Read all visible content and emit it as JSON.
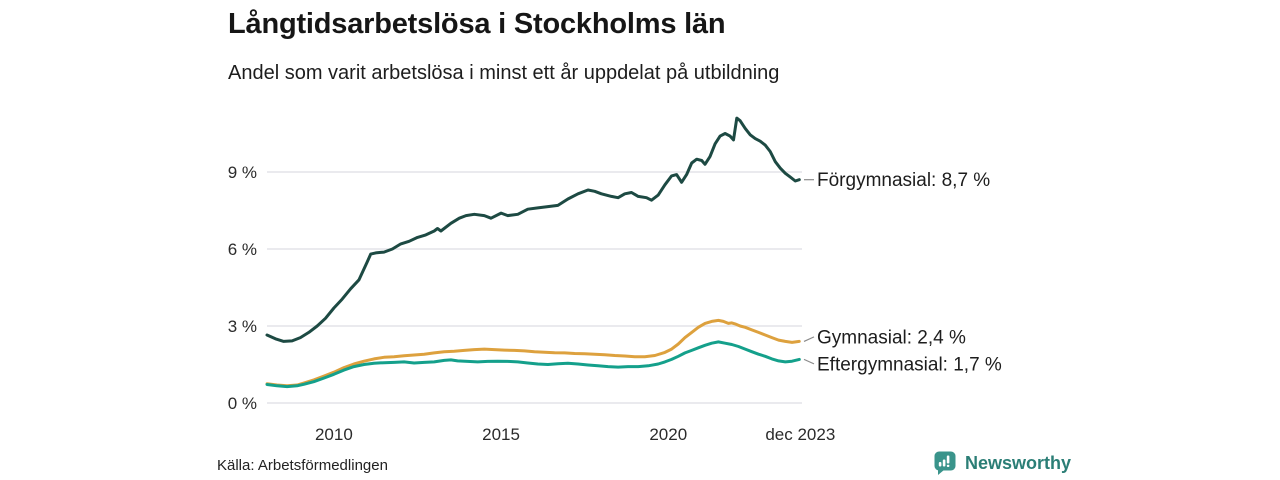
{
  "header": {
    "title": "Långtidsarbetslösa i Stockholms län",
    "subtitle": "Andel som varit arbetslösa i minst ett år uppdelat på utbildning"
  },
  "footer": {
    "source": "Källa: Arbetsförmedlingen",
    "brand": "Newsworthy"
  },
  "colors": {
    "forgymnasial": "#1d4a43",
    "gymnasial": "#dda13e",
    "eftergymnasial": "#14a08b",
    "gridline": "#e4e4e8",
    "axis_text": "#2b2b2b",
    "label_text": "#1d1d1d",
    "connector": "#8a8a8a",
    "brand_teal": "#3a948b",
    "background": "#ffffff"
  },
  "chart_data": {
    "type": "line",
    "title": "Långtidsarbetslösa i Stockholms län",
    "subtitle": "Andel som varit arbetslösa i minst ett år uppdelat på utbildning",
    "xlabel": "",
    "ylabel": "",
    "x_domain": [
      2008,
      2024
    ],
    "y_axis_max": 9,
    "grid": "horizontal",
    "legend_position": "end-of-line-labels",
    "y_ticks": [
      {
        "value": 0,
        "label": "0 %"
      },
      {
        "value": 3,
        "label": "3 %"
      },
      {
        "value": 6,
        "label": "6 %"
      },
      {
        "value": 9,
        "label": "9 %"
      }
    ],
    "x_ticks": [
      {
        "year": 2010,
        "label": "2010"
      },
      {
        "year": 2015,
        "label": "2015"
      },
      {
        "year": 2020,
        "label": "2020"
      },
      {
        "year": 2023.95,
        "label": "dec 2023"
      }
    ],
    "series": [
      {
        "name": "Förgymnasial",
        "end_label": "Förgymnasial: 8,7 %",
        "end_value_display": "8,7 %",
        "color": "#1d4a43",
        "stroke_width": 3,
        "points": [
          [
            2008.0,
            2.65
          ],
          [
            2008.25,
            2.5
          ],
          [
            2008.5,
            2.4
          ],
          [
            2008.75,
            2.42
          ],
          [
            2009.0,
            2.55
          ],
          [
            2009.25,
            2.75
          ],
          [
            2009.5,
            3.0
          ],
          [
            2009.75,
            3.3
          ],
          [
            2010.0,
            3.7
          ],
          [
            2010.25,
            4.05
          ],
          [
            2010.5,
            4.45
          ],
          [
            2010.75,
            4.8
          ],
          [
            2011.0,
            5.5
          ],
          [
            2011.1,
            5.8
          ],
          [
            2011.25,
            5.85
          ],
          [
            2011.5,
            5.88
          ],
          [
            2011.75,
            6.0
          ],
          [
            2012.0,
            6.2
          ],
          [
            2012.25,
            6.3
          ],
          [
            2012.5,
            6.45
          ],
          [
            2012.75,
            6.55
          ],
          [
            2013.0,
            6.7
          ],
          [
            2013.1,
            6.8
          ],
          [
            2013.2,
            6.7
          ],
          [
            2013.5,
            7.0
          ],
          [
            2013.75,
            7.2
          ],
          [
            2013.95,
            7.3
          ],
          [
            2014.2,
            7.35
          ],
          [
            2014.5,
            7.3
          ],
          [
            2014.7,
            7.2
          ],
          [
            2015.0,
            7.4
          ],
          [
            2015.2,
            7.3
          ],
          [
            2015.5,
            7.35
          ],
          [
            2015.8,
            7.55
          ],
          [
            2016.1,
            7.6
          ],
          [
            2016.4,
            7.65
          ],
          [
            2016.7,
            7.7
          ],
          [
            2017.0,
            7.95
          ],
          [
            2017.3,
            8.15
          ],
          [
            2017.6,
            8.3
          ],
          [
            2017.8,
            8.25
          ],
          [
            2018.0,
            8.15
          ],
          [
            2018.3,
            8.05
          ],
          [
            2018.5,
            8.0
          ],
          [
            2018.7,
            8.15
          ],
          [
            2018.9,
            8.2
          ],
          [
            2019.1,
            8.05
          ],
          [
            2019.35,
            8.0
          ],
          [
            2019.5,
            7.9
          ],
          [
            2019.7,
            8.1
          ],
          [
            2019.9,
            8.5
          ],
          [
            2020.1,
            8.85
          ],
          [
            2020.25,
            8.9
          ],
          [
            2020.4,
            8.6
          ],
          [
            2020.55,
            8.9
          ],
          [
            2020.7,
            9.35
          ],
          [
            2020.85,
            9.5
          ],
          [
            2021.0,
            9.45
          ],
          [
            2021.1,
            9.3
          ],
          [
            2021.25,
            9.6
          ],
          [
            2021.4,
            10.1
          ],
          [
            2021.55,
            10.4
          ],
          [
            2021.7,
            10.5
          ],
          [
            2021.85,
            10.4
          ],
          [
            2021.95,
            10.25
          ],
          [
            2022.05,
            11.1
          ],
          [
            2022.15,
            11.0
          ],
          [
            2022.3,
            10.7
          ],
          [
            2022.45,
            10.45
          ],
          [
            2022.6,
            10.3
          ],
          [
            2022.75,
            10.2
          ],
          [
            2022.9,
            10.05
          ],
          [
            2023.05,
            9.8
          ],
          [
            2023.2,
            9.4
          ],
          [
            2023.35,
            9.15
          ],
          [
            2023.5,
            8.95
          ],
          [
            2023.65,
            8.8
          ],
          [
            2023.8,
            8.65
          ],
          [
            2023.92,
            8.7
          ]
        ]
      },
      {
        "name": "Gymnasial",
        "end_label": "Gymnasial: 2,4 %",
        "end_value_display": "2,4 %",
        "color": "#dda13e",
        "stroke_width": 3,
        "points": [
          [
            2008.0,
            0.75
          ],
          [
            2008.3,
            0.7
          ],
          [
            2008.6,
            0.67
          ],
          [
            2008.9,
            0.7
          ],
          [
            2009.1,
            0.78
          ],
          [
            2009.4,
            0.9
          ],
          [
            2009.7,
            1.05
          ],
          [
            2010.0,
            1.2
          ],
          [
            2010.3,
            1.38
          ],
          [
            2010.6,
            1.52
          ],
          [
            2010.9,
            1.63
          ],
          [
            2011.2,
            1.72
          ],
          [
            2011.5,
            1.78
          ],
          [
            2011.8,
            1.8
          ],
          [
            2012.1,
            1.84
          ],
          [
            2012.4,
            1.87
          ],
          [
            2012.7,
            1.9
          ],
          [
            2013.0,
            1.95
          ],
          [
            2013.3,
            2.0
          ],
          [
            2013.6,
            2.02
          ],
          [
            2013.9,
            2.05
          ],
          [
            2014.2,
            2.08
          ],
          [
            2014.5,
            2.1
          ],
          [
            2014.8,
            2.08
          ],
          [
            2015.1,
            2.06
          ],
          [
            2015.4,
            2.05
          ],
          [
            2015.7,
            2.03
          ],
          [
            2016.0,
            2.0
          ],
          [
            2016.3,
            1.98
          ],
          [
            2016.6,
            1.96
          ],
          [
            2016.9,
            1.95
          ],
          [
            2017.2,
            1.93
          ],
          [
            2017.5,
            1.92
          ],
          [
            2017.8,
            1.9
          ],
          [
            2018.1,
            1.88
          ],
          [
            2018.4,
            1.85
          ],
          [
            2018.7,
            1.83
          ],
          [
            2019.0,
            1.8
          ],
          [
            2019.3,
            1.8
          ],
          [
            2019.6,
            1.85
          ],
          [
            2019.9,
            1.97
          ],
          [
            2020.1,
            2.1
          ],
          [
            2020.3,
            2.3
          ],
          [
            2020.5,
            2.55
          ],
          [
            2020.7,
            2.75
          ],
          [
            2020.9,
            2.95
          ],
          [
            2021.1,
            3.1
          ],
          [
            2021.3,
            3.18
          ],
          [
            2021.5,
            3.22
          ],
          [
            2021.65,
            3.18
          ],
          [
            2021.8,
            3.1
          ],
          [
            2021.9,
            3.12
          ],
          [
            2022.0,
            3.08
          ],
          [
            2022.15,
            3.0
          ],
          [
            2022.3,
            2.95
          ],
          [
            2022.5,
            2.85
          ],
          [
            2022.7,
            2.75
          ],
          [
            2022.9,
            2.65
          ],
          [
            2023.1,
            2.55
          ],
          [
            2023.3,
            2.45
          ],
          [
            2023.5,
            2.4
          ],
          [
            2023.7,
            2.36
          ],
          [
            2023.92,
            2.4
          ]
        ]
      },
      {
        "name": "Eftergymnasial",
        "end_label": "Eftergymnasial: 1,7 %",
        "end_value_display": "1,7 %",
        "color": "#14a08b",
        "stroke_width": 3,
        "points": [
          [
            2008.0,
            0.72
          ],
          [
            2008.3,
            0.67
          ],
          [
            2008.6,
            0.64
          ],
          [
            2008.9,
            0.67
          ],
          [
            2009.1,
            0.73
          ],
          [
            2009.4,
            0.83
          ],
          [
            2009.7,
            0.97
          ],
          [
            2010.0,
            1.12
          ],
          [
            2010.3,
            1.28
          ],
          [
            2010.6,
            1.42
          ],
          [
            2010.9,
            1.5
          ],
          [
            2011.2,
            1.55
          ],
          [
            2011.5,
            1.57
          ],
          [
            2011.8,
            1.58
          ],
          [
            2012.1,
            1.6
          ],
          [
            2012.4,
            1.56
          ],
          [
            2012.7,
            1.58
          ],
          [
            2013.0,
            1.6
          ],
          [
            2013.3,
            1.66
          ],
          [
            2013.5,
            1.68
          ],
          [
            2013.7,
            1.64
          ],
          [
            2014.0,
            1.62
          ],
          [
            2014.3,
            1.6
          ],
          [
            2014.6,
            1.62
          ],
          [
            2014.9,
            1.63
          ],
          [
            2015.2,
            1.62
          ],
          [
            2015.5,
            1.6
          ],
          [
            2015.8,
            1.56
          ],
          [
            2016.1,
            1.52
          ],
          [
            2016.4,
            1.5
          ],
          [
            2016.7,
            1.53
          ],
          [
            2017.0,
            1.55
          ],
          [
            2017.3,
            1.52
          ],
          [
            2017.6,
            1.48
          ],
          [
            2017.9,
            1.45
          ],
          [
            2018.2,
            1.42
          ],
          [
            2018.5,
            1.4
          ],
          [
            2018.8,
            1.42
          ],
          [
            2019.1,
            1.42
          ],
          [
            2019.4,
            1.45
          ],
          [
            2019.7,
            1.52
          ],
          [
            2019.9,
            1.6
          ],
          [
            2020.1,
            1.7
          ],
          [
            2020.3,
            1.82
          ],
          [
            2020.5,
            1.95
          ],
          [
            2020.7,
            2.05
          ],
          [
            2020.9,
            2.15
          ],
          [
            2021.1,
            2.25
          ],
          [
            2021.3,
            2.33
          ],
          [
            2021.5,
            2.38
          ],
          [
            2021.7,
            2.33
          ],
          [
            2021.9,
            2.28
          ],
          [
            2022.1,
            2.2
          ],
          [
            2022.3,
            2.1
          ],
          [
            2022.5,
            2.0
          ],
          [
            2022.7,
            1.9
          ],
          [
            2022.9,
            1.82
          ],
          [
            2023.1,
            1.72
          ],
          [
            2023.3,
            1.64
          ],
          [
            2023.5,
            1.6
          ],
          [
            2023.7,
            1.63
          ],
          [
            2023.92,
            1.7
          ]
        ]
      }
    ]
  }
}
